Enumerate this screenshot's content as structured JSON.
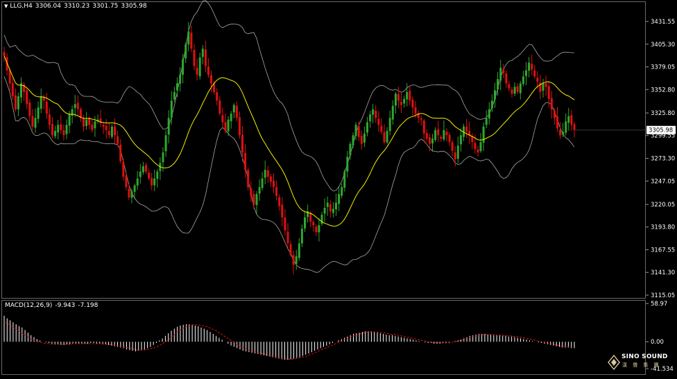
{
  "header": {
    "symbol": "LLG,H4",
    "open": "3306.04",
    "high": "3310.23",
    "low": "3301.75",
    "close": "3305.98"
  },
  "macd": {
    "title": "MACD(12,26,9)",
    "main": "-9.943",
    "signal": "-7.198"
  },
  "price_axis": {
    "ticks": [
      "3431.55",
      "3405.30",
      "3379.05",
      "3352.80",
      "3325.80",
      "3299.55",
      "3273.30",
      "3247.05",
      "3220.05",
      "3193.80",
      "3167.55",
      "3141.30",
      "3115.05"
    ],
    "current_price": "3305.98"
  },
  "macd_axis": {
    "ticks": [
      "58.97",
      "0.00",
      "-41.534"
    ]
  },
  "logo": {
    "brand": "SINO SOUND",
    "brand_cn": "漢 聲 集 團"
  },
  "colors": {
    "background": "#000000",
    "bull": "#2ea82e",
    "bear": "#e01010",
    "moving_average": "#f5f000",
    "bands": "#a8a8a8",
    "signal": "#e01010",
    "histogram": "#ffffff"
  },
  "chart_data": [
    {
      "type": "candlestick",
      "title": "LLG,H4",
      "ylim": [
        3115.05,
        3431.55
      ],
      "indicators": [
        "moving-average",
        "bollinger-bands"
      ],
      "series": [
        {
          "name": "close",
          "values": [
            3392,
            3375,
            3360,
            3345,
            3330,
            3345,
            3360,
            3350,
            3336,
            3322,
            3310,
            3320,
            3332,
            3345,
            3340,
            3325,
            3312,
            3300,
            3305,
            3312,
            3306,
            3300,
            3312,
            3324,
            3330,
            3336,
            3330,
            3320,
            3310,
            3318,
            3312,
            3306,
            3316,
            3318,
            3314,
            3310,
            3306,
            3300,
            3310,
            3300,
            3290,
            3270,
            3252,
            3240,
            3228,
            3235,
            3242,
            3250,
            3258,
            3264,
            3258,
            3250,
            3242,
            3250,
            3258,
            3268,
            3280,
            3300,
            3320,
            3340,
            3350,
            3360,
            3370,
            3388,
            3405,
            3420,
            3400,
            3380,
            3370,
            3390,
            3400,
            3380,
            3370,
            3360,
            3350,
            3340,
            3325,
            3315,
            3305,
            3318,
            3325,
            3335,
            3320,
            3300,
            3280,
            3260,
            3240,
            3230,
            3220,
            3232,
            3240,
            3250,
            3260,
            3252,
            3246,
            3240,
            3230,
            3218,
            3205,
            3190,
            3175,
            3162,
            3150,
            3160,
            3175,
            3192,
            3205,
            3212,
            3200,
            3196,
            3188,
            3196,
            3208,
            3216,
            3222,
            3212,
            3215,
            3222,
            3232,
            3240,
            3258,
            3275,
            3290,
            3300,
            3312,
            3298,
            3290,
            3302,
            3315,
            3324,
            3330,
            3320,
            3312,
            3304,
            3292,
            3305,
            3320,
            3334,
            3348,
            3340,
            3335,
            3342,
            3350,
            3340,
            3332,
            3325,
            3320,
            3318,
            3302,
            3296,
            3290,
            3296,
            3306,
            3300,
            3296,
            3306,
            3300,
            3292,
            3282,
            3272,
            3288,
            3300,
            3310,
            3304,
            3300,
            3292,
            3284,
            3280,
            3292,
            3310,
            3320,
            3330,
            3340,
            3352,
            3365,
            3378,
            3372,
            3360,
            3354,
            3348,
            3356,
            3350,
            3360,
            3368,
            3375,
            3384,
            3376,
            3368,
            3362,
            3350,
            3360,
            3356,
            3342,
            3330,
            3320,
            3308,
            3300,
            3304,
            3316,
            3322,
            3312,
            3306
          ]
        }
      ]
    },
    {
      "type": "bar",
      "title": "MACD(12,26,9)",
      "ylim": [
        -41.534,
        58.97
      ],
      "series": [
        {
          "name": "main",
          "values": [
            40,
            36,
            33,
            30,
            27,
            24,
            22,
            18,
            14,
            10,
            7,
            4,
            2,
            0,
            -1,
            -2,
            -3,
            -4,
            -4,
            -5,
            -5,
            -4,
            -4,
            -3,
            -3,
            -3,
            -3,
            -3,
            -3,
            -2,
            -2,
            -3,
            -3,
            -4,
            -4,
            -5,
            -6,
            -7,
            -8,
            -9,
            -10,
            -12,
            -13,
            -14,
            -15,
            -14,
            -13,
            -12,
            -10,
            -8,
            -5,
            -2,
            2,
            5,
            9,
            13,
            17,
            20,
            23,
            25,
            26,
            27,
            27,
            26,
            25,
            24,
            22,
            20,
            18,
            15,
            12,
            9,
            6,
            3,
            0,
            -3,
            -6,
            -8,
            -10,
            -12,
            -14,
            -15,
            -16,
            -17,
            -18,
            -19,
            -20,
            -21,
            -22,
            -23,
            -24,
            -25,
            -26,
            -27,
            -28,
            -28,
            -27,
            -26,
            -25,
            -24,
            -22,
            -20,
            -18,
            -16,
            -14,
            -12,
            -10,
            -8,
            -6,
            -4,
            -2,
            0,
            2,
            4,
            6,
            8,
            10,
            12,
            13,
            14,
            15,
            16,
            16,
            16,
            15,
            14,
            13,
            12,
            11,
            10,
            10,
            9,
            8,
            7,
            6,
            5,
            4,
            3,
            2,
            1,
            0,
            -1,
            -2,
            -2,
            -3,
            -3,
            -3,
            -2,
            -2,
            -1,
            0,
            1,
            2,
            3,
            5,
            7,
            9,
            10,
            11,
            12,
            12,
            12,
            11,
            11,
            10,
            10,
            10,
            9,
            9,
            8,
            8,
            7,
            6,
            5,
            4,
            3,
            2,
            1,
            0,
            -1,
            -2,
            -3,
            -4,
            -5,
            -6,
            -7,
            -8,
            -9,
            -9,
            -9,
            -10,
            -10
          ]
        },
        {
          "name": "signal",
          "values": [
            30,
            28,
            25,
            22,
            19,
            16,
            13,
            10,
            7,
            4,
            2,
            0,
            -1,
            -2,
            -3,
            -3,
            -4,
            -4,
            -4,
            -4,
            -4,
            -4,
            -4,
            -3,
            -3,
            -3,
            -3,
            -3,
            -3,
            -3,
            -3,
            -3,
            -3,
            -3,
            -4,
            -4,
            -5,
            -5,
            -6,
            -7,
            -8,
            -9,
            -10,
            -11,
            -12,
            -13,
            -13,
            -13,
            -12,
            -11,
            -10,
            -8,
            -6,
            -3,
            0,
            3,
            7,
            11,
            15,
            18,
            21,
            23,
            25,
            26,
            26,
            26,
            25,
            24,
            23,
            21,
            19,
            17,
            14,
            11,
            8,
            5,
            2,
            -1,
            -4,
            -7,
            -9,
            -11,
            -13,
            -14,
            -16,
            -17,
            -18,
            -19,
            -20,
            -21,
            -22,
            -23,
            -24,
            -25,
            -26,
            -27,
            -27,
            -27,
            -26,
            -25,
            -24,
            -23,
            -21,
            -19,
            -17,
            -15,
            -13,
            -11,
            -9,
            -7,
            -5,
            -3,
            -1,
            1,
            3,
            5,
            7,
            9,
            10,
            12,
            13,
            14,
            15,
            15,
            15,
            15,
            14,
            14,
            13,
            12,
            11,
            11,
            10,
            9,
            8,
            7,
            6,
            5,
            4,
            3,
            2,
            1,
            0,
            -1,
            -1,
            -2,
            -2,
            -2,
            -2,
            -2,
            -1,
            0,
            1,
            2,
            3,
            5,
            6,
            8,
            9,
            10,
            10,
            11,
            11,
            11,
            11,
            10,
            10,
            10,
            9,
            9,
            9,
            8,
            8,
            7,
            6,
            5,
            4,
            3,
            2,
            1,
            0,
            -1,
            -2,
            -3,
            -4,
            -5,
            -6,
            -7,
            -7,
            -8,
            -8
          ]
        }
      ]
    }
  ]
}
